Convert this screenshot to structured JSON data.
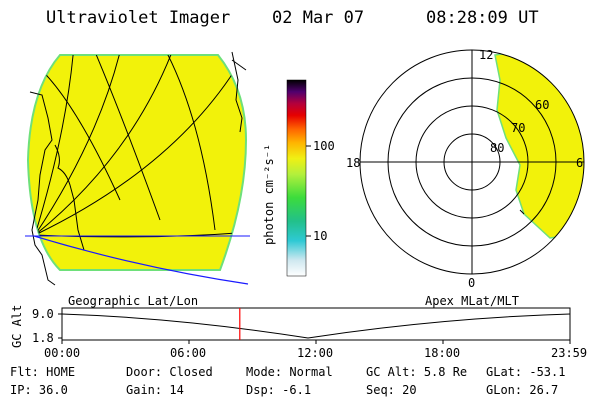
{
  "header": {
    "instrument": "Ultraviolet Imager",
    "date": "02 Mar 07",
    "time": "08:28:09 UT"
  },
  "colorbar": {
    "unit_label": "photon cm⁻²s⁻¹",
    "ticks": [
      "100",
      "10"
    ]
  },
  "polar_plot": {
    "mlt_labels": {
      "top": "12",
      "left": "18",
      "right": "6",
      "bottom": "0"
    },
    "lat_labels": [
      "60",
      "70",
      "80"
    ]
  },
  "panel_labels": {
    "left": "Geographic Lat/Lon",
    "right": "Apex MLat/MLT"
  },
  "altitude_plot": {
    "axis_label": "GC Alt",
    "y_ticks": [
      "9.0",
      "1.8"
    ],
    "x_ticks": [
      "00:00",
      "06:00",
      "12:00",
      "18:00",
      "23:59"
    ],
    "current_time_fraction": 0.35
  },
  "status": {
    "row1": [
      {
        "key": "Flt:",
        "value": "HOME"
      },
      {
        "key": "Door:",
        "value": "Closed"
      },
      {
        "key": "Mode:",
        "value": "Normal"
      },
      {
        "key": "GC Alt:",
        "value": "5.8 Re"
      },
      {
        "key": "GLat:",
        "value": "-53.1"
      }
    ],
    "row2": [
      {
        "key": "IP:",
        "value": "36.0"
      },
      {
        "key": "Gain:",
        "value": "14"
      },
      {
        "key": "Dsp:",
        "value": "-6.1"
      },
      {
        "key": "Seq:",
        "value": "20"
      },
      {
        "key": "GLon:",
        "value": "26.7"
      }
    ]
  },
  "colors": {
    "image_fill": "#f2f20a",
    "image_edge": "#6ee07a",
    "marker": "#ff0000",
    "grid_blue": "#1a1aff"
  }
}
